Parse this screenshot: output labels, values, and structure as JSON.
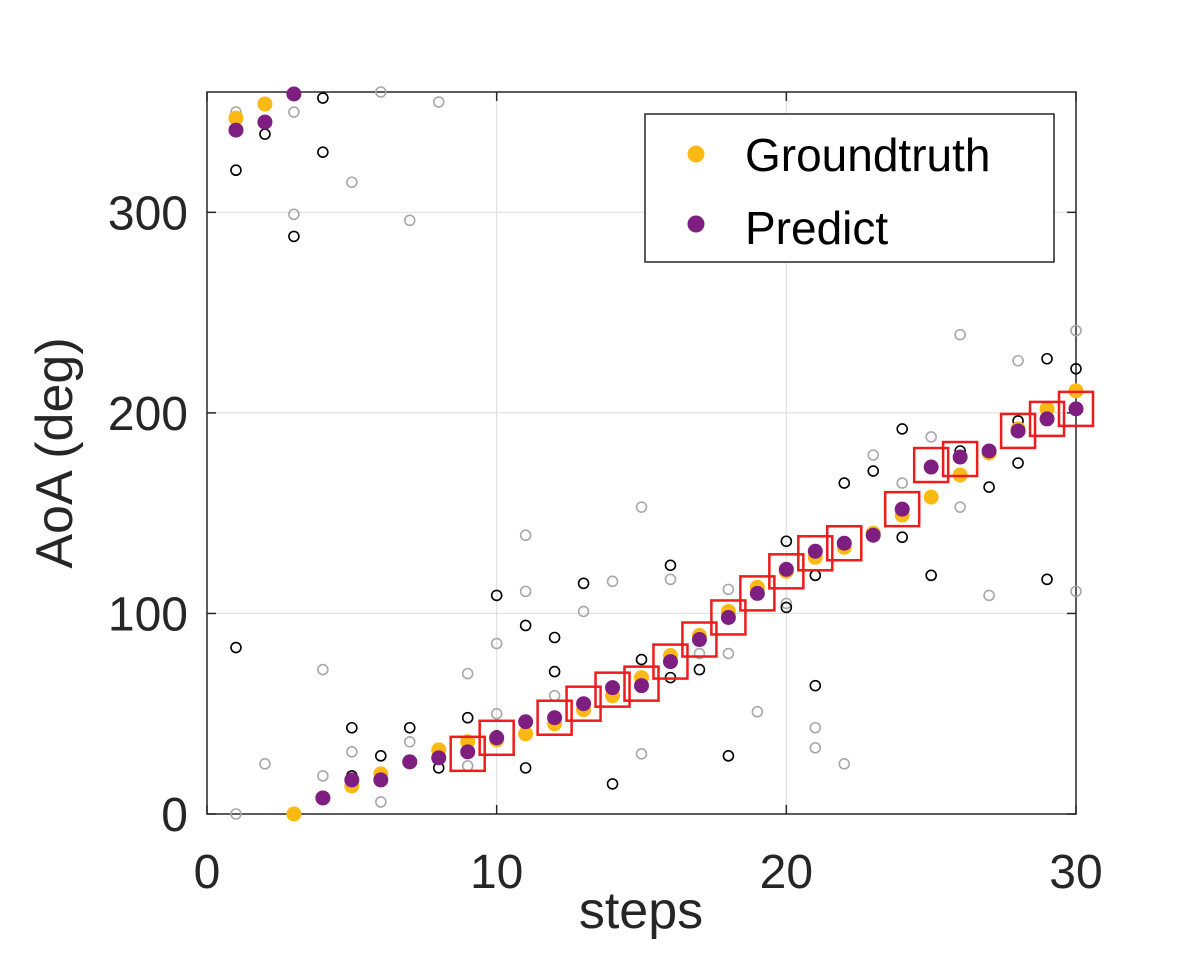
{
  "chart_data": {
    "type": "scatter",
    "xlabel": "steps",
    "ylabel": "AoA (deg)",
    "xlim": [
      0,
      30
    ],
    "ylim": [
      0,
      360
    ],
    "xticks": [
      0,
      10,
      20,
      30
    ],
    "yticks": [
      0,
      100,
      200,
      300
    ],
    "grid": true,
    "legend_position": "top-right",
    "colors": {
      "groundtruth": "#FDB913",
      "predict": "#7E1E80",
      "candidate_dark": "#000000",
      "candidate_light": "#a8a8a8",
      "box": "#ee1c1c",
      "axis": "#262626",
      "grid": "#e0e0e0"
    },
    "series": [
      {
        "name": "Groundtruth",
        "marker": "filled-circle",
        "x": [
          1,
          2,
          3,
          4,
          5,
          6,
          7,
          8,
          9,
          10,
          11,
          12,
          13,
          14,
          15,
          16,
          17,
          18,
          19,
          20,
          21,
          22,
          23,
          24,
          25,
          26,
          27,
          28,
          29,
          30
        ],
        "y": [
          347,
          354,
          0,
          8,
          14,
          20,
          26,
          32,
          36,
          37,
          40,
          45,
          52,
          59,
          68,
          79,
          89,
          101,
          113,
          121,
          128,
          133,
          140,
          149,
          158,
          169,
          180,
          192,
          202,
          211
        ]
      },
      {
        "name": "Predict",
        "marker": "filled-circle",
        "x": [
          1,
          2,
          3,
          4,
          5,
          6,
          7,
          8,
          9,
          10,
          11,
          12,
          13,
          14,
          15,
          16,
          17,
          18,
          19,
          20,
          21,
          22,
          23,
          24,
          25,
          26,
          27,
          28,
          29,
          30
        ],
        "y": [
          341,
          345,
          359,
          8,
          17,
          17,
          26,
          28,
          31,
          38,
          46,
          48,
          55,
          63,
          64,
          76,
          87,
          98,
          110,
          122,
          131,
          135,
          139,
          152,
          173,
          178,
          181,
          191,
          197,
          202
        ]
      },
      {
        "marker": "open-circle-dark",
        "x": [
          1,
          1,
          2,
          3,
          3,
          4,
          4,
          5,
          5,
          6,
          7,
          8,
          9,
          10,
          10,
          11,
          11,
          12,
          12,
          13,
          14,
          15,
          16,
          16,
          17,
          18,
          20,
          20,
          21,
          21,
          22,
          23,
          24,
          24,
          25,
          26,
          27,
          28,
          28,
          29,
          29,
          30
        ],
        "y": [
          321,
          83,
          339,
          288,
          359,
          357,
          330,
          43,
          19,
          29,
          43,
          23,
          48,
          39,
          109,
          94,
          23,
          88,
          71,
          115,
          15,
          77,
          124,
          68,
          72,
          29,
          136,
          103,
          119,
          64,
          165,
          171,
          192,
          138,
          119,
          181,
          163,
          196,
          175,
          227,
          117,
          222
        ]
      },
      {
        "marker": "open-circle-light",
        "x": [
          1,
          1,
          2,
          3,
          3,
          4,
          4,
          5,
          5,
          6,
          6,
          7,
          7,
          8,
          9,
          9,
          10,
          10,
          11,
          11,
          12,
          13,
          14,
          15,
          15,
          16,
          17,
          18,
          18,
          19,
          20,
          21,
          21,
          22,
          23,
          24,
          25,
          26,
          26,
          27,
          28,
          29,
          30,
          30
        ],
        "y": [
          350,
          0,
          25,
          299,
          350,
          72,
          19,
          315,
          31,
          360,
          6,
          296,
          36,
          355,
          70,
          24,
          85,
          50,
          111,
          139,
          59,
          101,
          116,
          153,
          30,
          117,
          80,
          80,
          112,
          51,
          105,
          33,
          43,
          25,
          179,
          165,
          188,
          239,
          153,
          109,
          226,
          203,
          241,
          111
        ]
      }
    ],
    "highlight_boxes": {
      "x": [
        9,
        10,
        12,
        13,
        14,
        15,
        16,
        17,
        18,
        19,
        20,
        21,
        22,
        24,
        25,
        26,
        28,
        29,
        30
      ],
      "y": [
        30,
        38,
        48,
        55,
        62,
        65,
        76,
        87,
        98,
        110,
        121,
        130,
        135,
        152,
        174,
        177,
        191,
        197,
        202
      ]
    }
  }
}
